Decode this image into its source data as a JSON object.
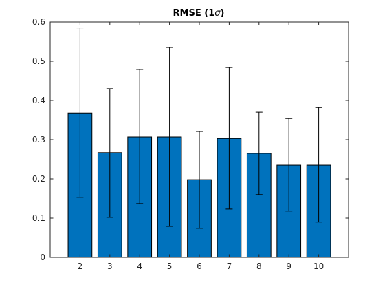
{
  "chart_data": {
    "type": "bar",
    "title": "RMSE (1σ)",
    "title_prefix": "RMSE (1",
    "title_sigma": "σ",
    "title_suffix": ")",
    "xlabel": "",
    "ylabel": "",
    "categories": [
      "2",
      "3",
      "4",
      "5",
      "6",
      "7",
      "8",
      "9",
      "10"
    ],
    "values": [
      0.368,
      0.267,
      0.307,
      0.307,
      0.198,
      0.303,
      0.265,
      0.235,
      0.235
    ],
    "error_low": [
      0.153,
      0.102,
      0.137,
      0.079,
      0.074,
      0.123,
      0.16,
      0.118,
      0.09
    ],
    "error_high": [
      0.585,
      0.43,
      0.479,
      0.535,
      0.321,
      0.484,
      0.37,
      0.354,
      0.382
    ],
    "xlim": [
      1,
      11
    ],
    "ylim": [
      0,
      0.6
    ],
    "yticks": [
      "0",
      "0.1",
      "0.2",
      "0.3",
      "0.4",
      "0.5",
      "0.6"
    ],
    "ytick_values": [
      0,
      0.1,
      0.2,
      0.3,
      0.4,
      0.5,
      0.6
    ],
    "grid": false,
    "legend": "none",
    "colors": {
      "bar_fill": "#0072BD",
      "bar_edge": "#000000",
      "axis": "#262626",
      "error_bar": "#000000"
    }
  }
}
